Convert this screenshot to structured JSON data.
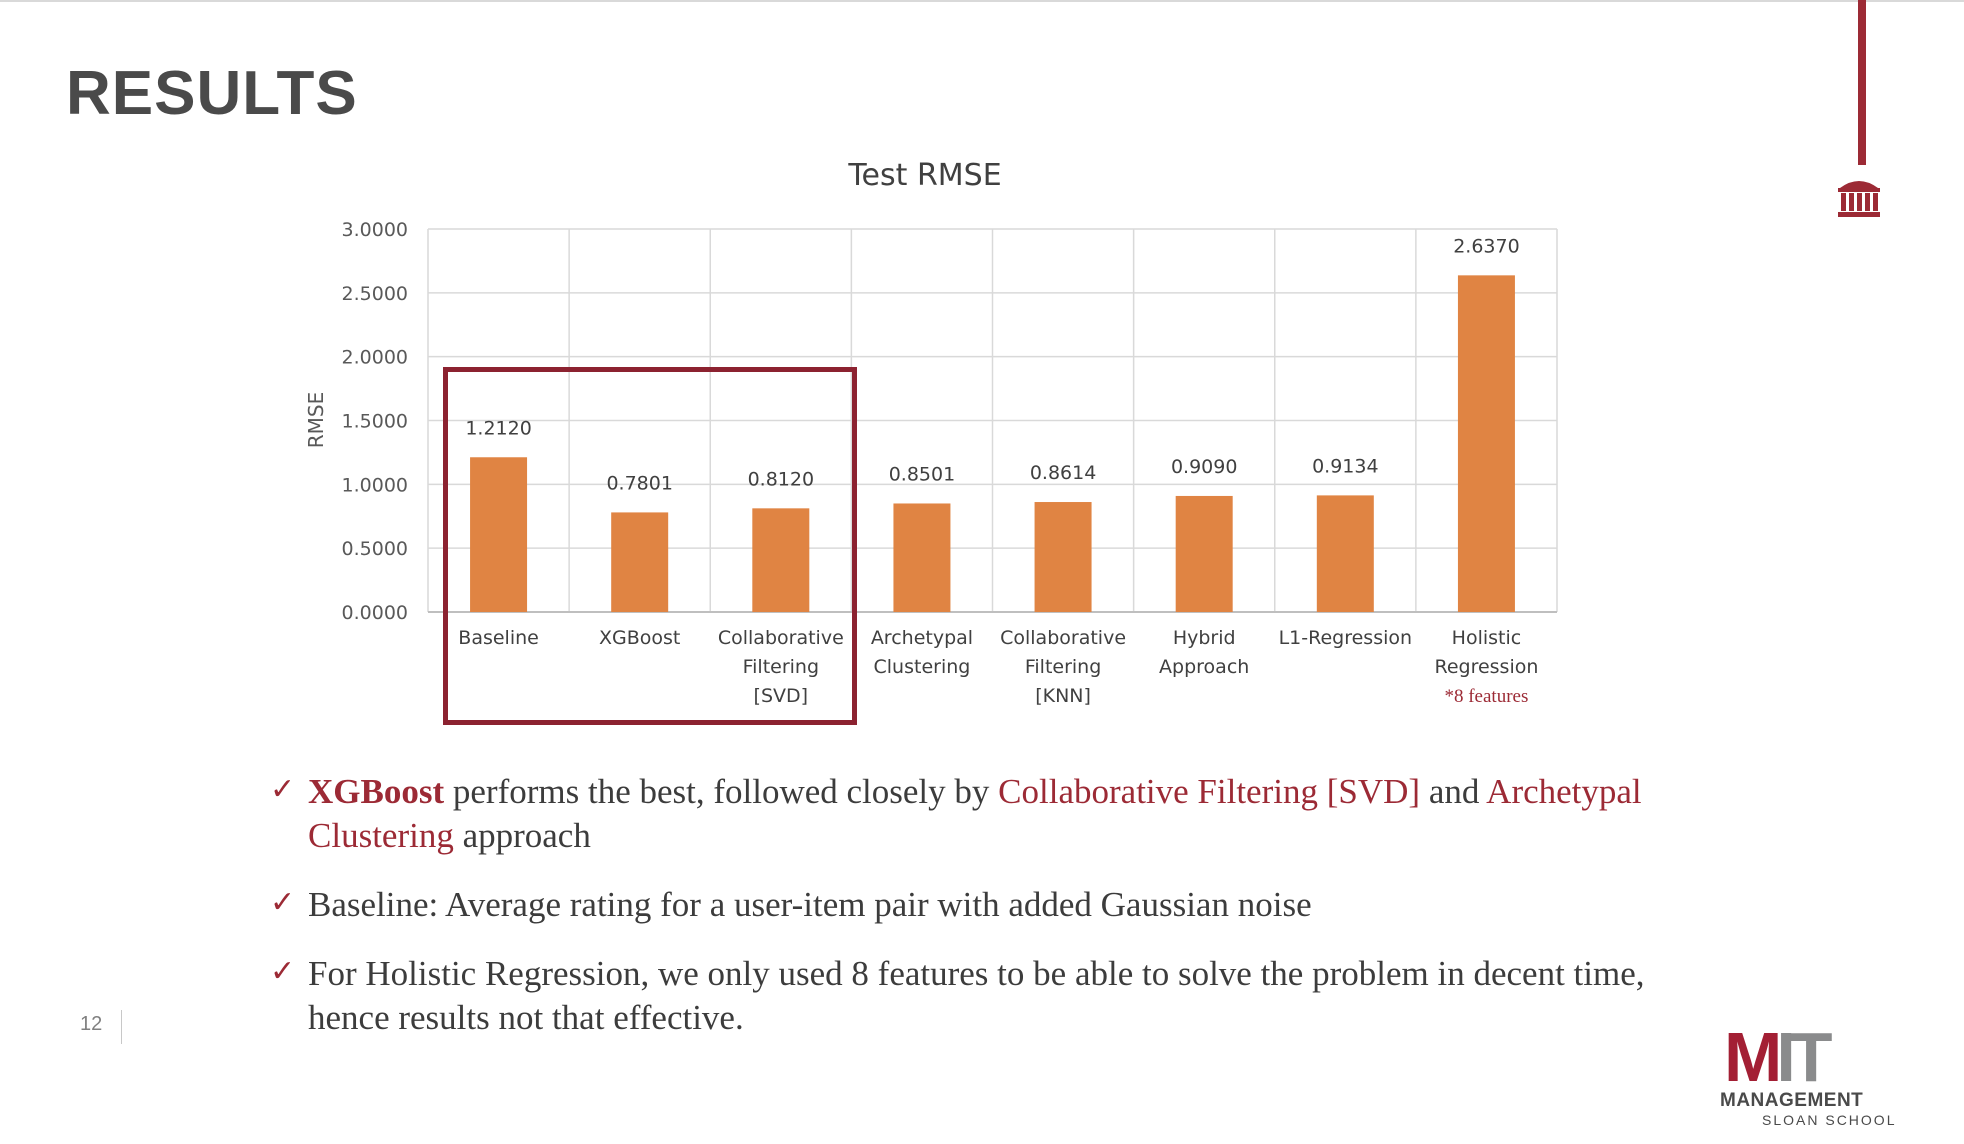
{
  "slide": {
    "title": "RESULTS",
    "page_number": "12"
  },
  "chart_data": {
    "type": "bar",
    "title": "Test RMSE",
    "xlabel": "",
    "ylabel": "RMSE",
    "ylim": [
      0,
      3
    ],
    "yticks": [
      "0.0000",
      "0.5000",
      "1.0000",
      "1.5000",
      "2.0000",
      "2.5000",
      "3.0000"
    ],
    "grid": true,
    "bar_color": "#e08443",
    "categories": [
      [
        "Baseline"
      ],
      [
        "XGBoost"
      ],
      [
        "Collaborative",
        "Filtering",
        "[SVD]"
      ],
      [
        "Archetypal",
        "Clustering"
      ],
      [
        "Collaborative",
        "Filtering",
        "[KNN]"
      ],
      [
        "Hybrid",
        "Approach"
      ],
      [
        "L1-Regression"
      ],
      [
        "Holistic",
        "Regression"
      ]
    ],
    "values": [
      1.212,
      0.7801,
      0.812,
      0.8501,
      0.8614,
      0.909,
      0.9134,
      2.637
    ],
    "data_labels": [
      "1.2120",
      "0.7801",
      "0.8120",
      "0.8501",
      "0.8614",
      "0.9090",
      "0.9134",
      "2.6370"
    ],
    "annotations": [
      {
        "category_index": 7,
        "text": "*8 features",
        "color": "#9c2a35"
      }
    ]
  },
  "bullets": {
    "b1": {
      "part1": "XGBoost",
      "part2": " performs the best, followed closely by ",
      "part3": "Collaborative Filtering [SVD]",
      "part4": " and ",
      "part5": "Archetypal Clustering",
      "part6": " approach"
    },
    "b2": "Baseline: Average rating for a user-item pair with added Gaussian noise",
    "b3": "For Holistic Regression, we only used 8 features to be able to solve the problem in decent time, hence results not that effective.",
    "check_glyph": "✓"
  },
  "logo": {
    "mit": "MIT",
    "m": "M",
    "it": "IT",
    "management": "MANAGEMENT",
    "school": "SLOAN SCHOOL"
  },
  "colors": {
    "accent": "#9c2a35",
    "bar": "#e08443",
    "title": "#4a4a4a"
  }
}
